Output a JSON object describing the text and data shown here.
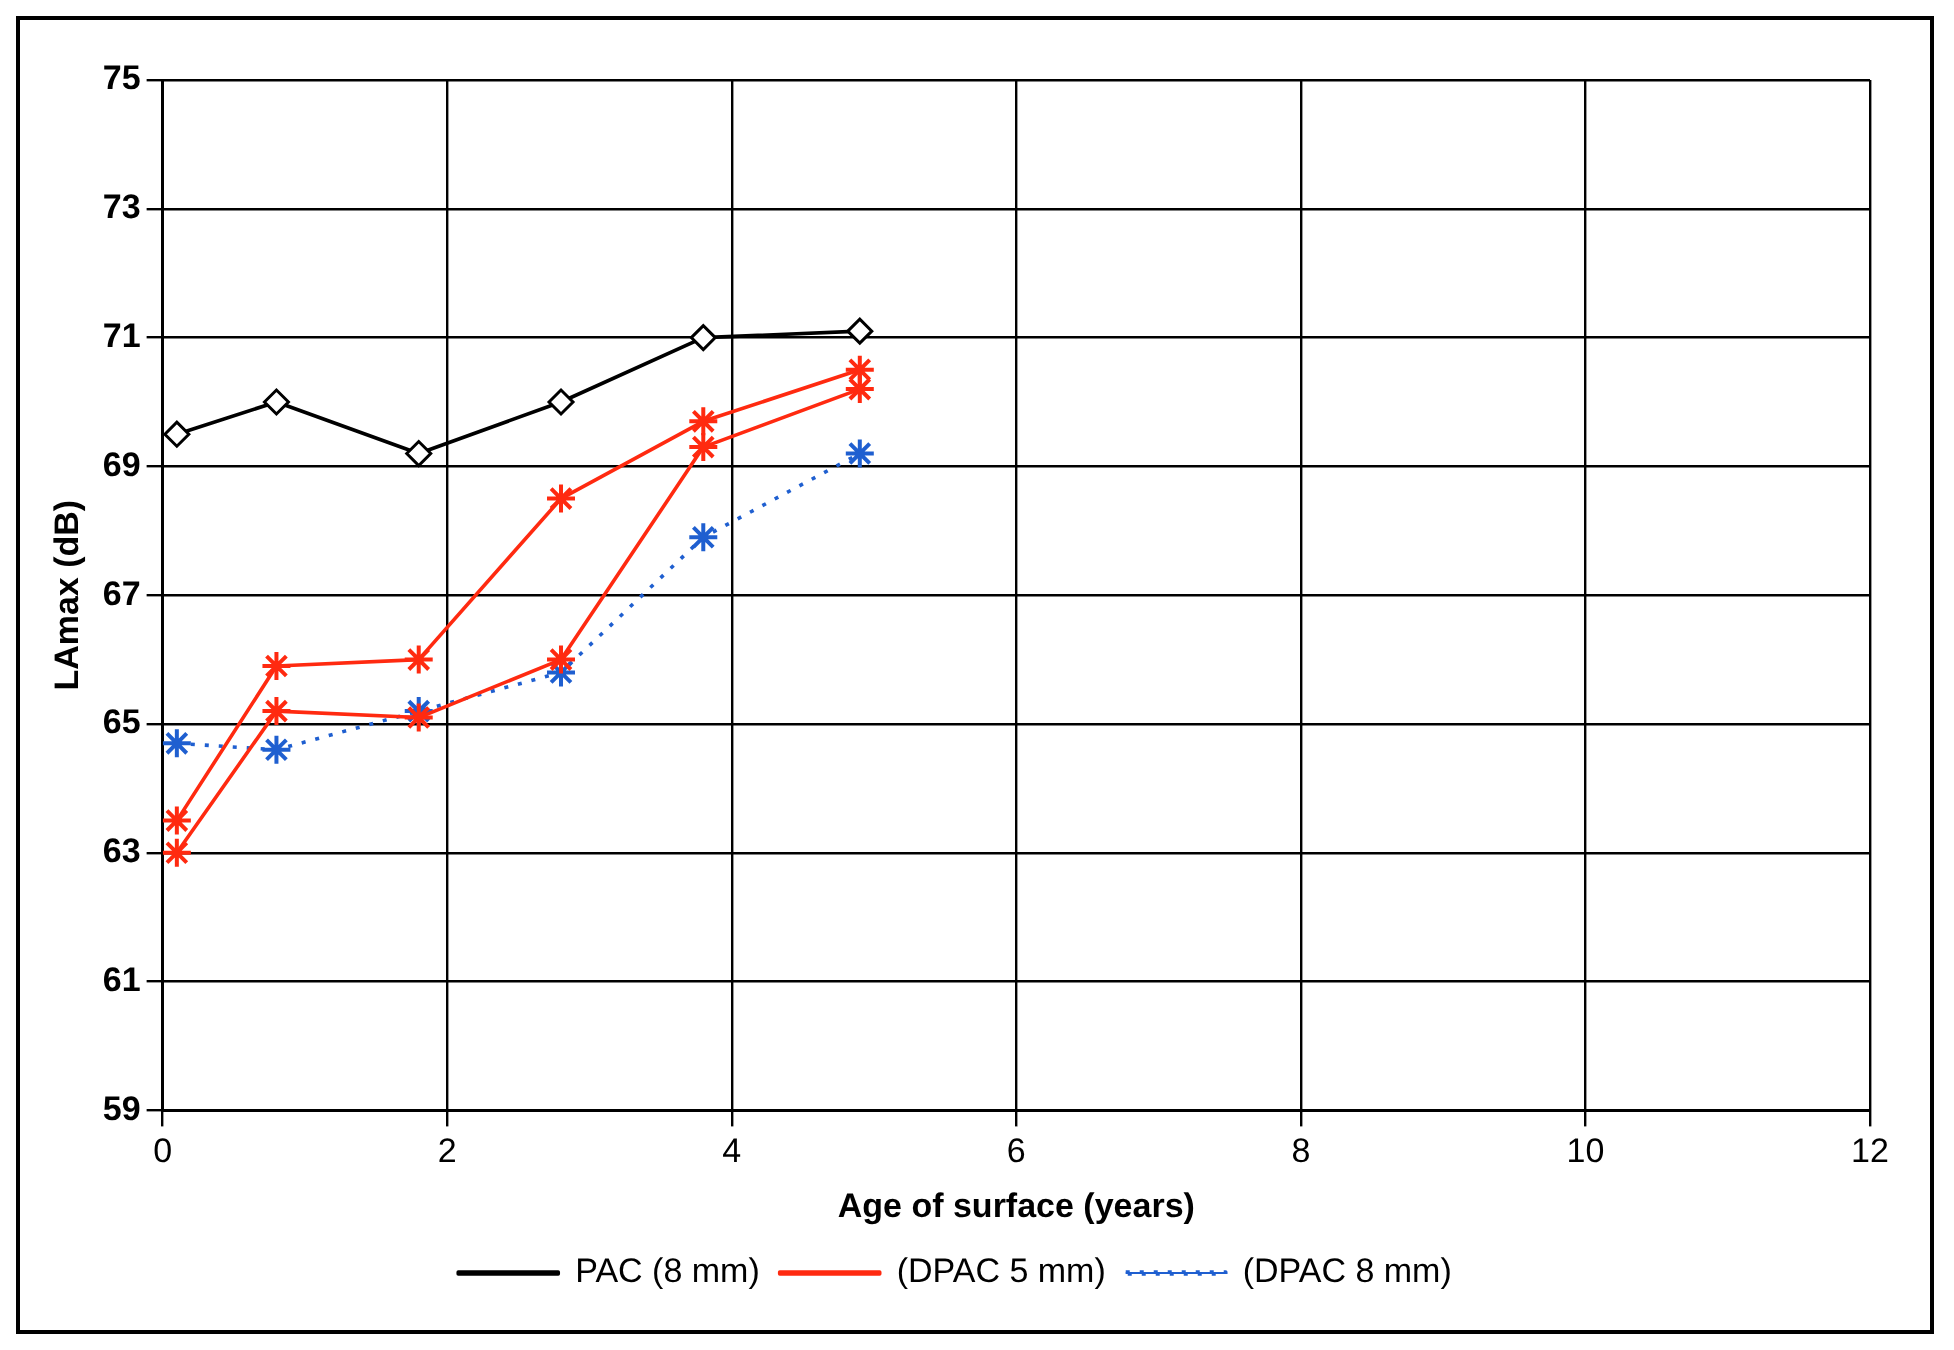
{
  "chart_data": {
    "type": "line",
    "xlabel": "Age of surface (years)",
    "ylabel": "LAmax (dB)",
    "xlim": [
      0,
      12
    ],
    "xticks": [
      0,
      2,
      4,
      6,
      8,
      10,
      12
    ],
    "ylim": [
      59,
      75
    ],
    "yticks": [
      59,
      61,
      63,
      65,
      67,
      69,
      71,
      73,
      75
    ],
    "grid": true,
    "legend": "bottom",
    "series": [
      {
        "name": "PAC (8 mm)",
        "color": "#000000",
        "marker": "diamond",
        "line_style": "solid",
        "x": [
          0.1,
          0.8,
          1.8,
          2.8,
          3.8,
          4.9
        ],
        "values": [
          69.5,
          70.0,
          69.2,
          70.0,
          71.0,
          71.1
        ]
      },
      {
        "name": "(DPAC 5 mm)",
        "color": "#ff2a10",
        "marker": "cross",
        "line_style": "solid",
        "x": [
          0.1,
          0.8,
          1.8,
          2.8,
          3.8,
          4.9
        ],
        "values": [
          63.5,
          65.9,
          66.0,
          68.5,
          69.7,
          70.5
        ]
      },
      {
        "color": "#ff2a10",
        "marker": "cross",
        "line_style": "solid",
        "x": [
          0.1,
          0.8,
          1.8,
          2.8,
          3.8,
          4.9
        ],
        "values": [
          63.0,
          65.2,
          65.1,
          66.0,
          69.3,
          70.2
        ]
      },
      {
        "name": "(DPAC 8 mm)",
        "color": "#1f5fd0",
        "marker": "cross",
        "line_style": "dotted",
        "x": [
          0.1,
          0.8,
          1.8,
          2.8,
          3.8,
          4.9
        ],
        "values": [
          64.7,
          64.6,
          65.2,
          65.8,
          67.9,
          69.2
        ]
      }
    ]
  }
}
